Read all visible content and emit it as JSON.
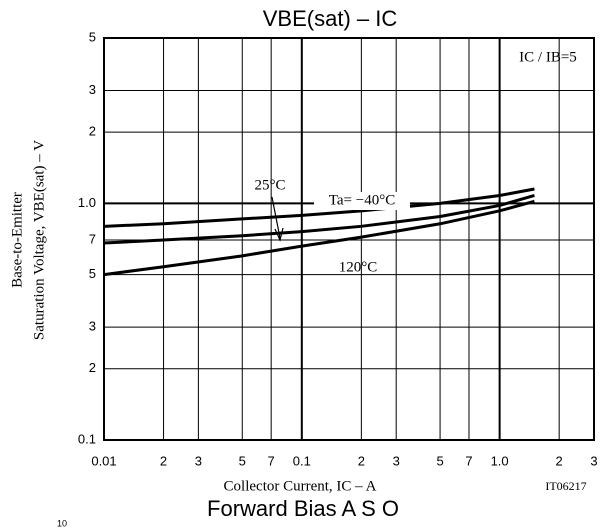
{
  "chart_data": {
    "type": "line",
    "title": "VBE(sat)  –  IC",
    "x_label": "Collector Current, IC  –  A",
    "y_label": [
      "Base-to-Emitter",
      "Saturation Voltage, VBE(sat)  –  V"
    ],
    "condition": "IC / IB=5",
    "figure_code": "IT06217",
    "next_title": "Forward Bias A S O",
    "next_cut_label": "10",
    "log_x": true,
    "log_y": true,
    "grid": true,
    "xlim": [
      0.01,
      3
    ],
    "ylim": [
      0.1,
      5
    ],
    "xticks": [
      0.01,
      {
        "value": 0.02,
        "label": "2"
      },
      {
        "value": 0.03,
        "label": "3"
      },
      {
        "value": 0.05,
        "label": "5"
      },
      {
        "value": 0.07,
        "label": "7"
      },
      0.1,
      {
        "value": 0.2,
        "label": "2"
      },
      {
        "value": 0.3,
        "label": "3"
      },
      {
        "value": 0.5,
        "label": "5"
      },
      {
        "value": 0.7,
        "label": "7"
      },
      {
        "value": 1,
        "label": "1.0"
      },
      2,
      3
    ],
    "yticks": [
      0.1,
      {
        "value": 0.2,
        "label": "2"
      },
      {
        "value": 0.3,
        "label": "3"
      },
      {
        "value": 0.5,
        "label": "5"
      },
      {
        "value": 0.7,
        "label": "7"
      },
      {
        "value": 1,
        "label": "1.0"
      },
      2,
      3,
      5
    ],
    "x": [
      0.01,
      0.02,
      0.05,
      0.1,
      0.2,
      0.5,
      1.0,
      1.5
    ],
    "series": [
      {
        "name": "Ta= −40°C",
        "color": "#000000",
        "values": [
          0.8,
          0.82,
          0.86,
          0.89,
          0.93,
          1.0,
          1.08,
          1.15
        ]
      },
      {
        "name": "25°C",
        "color": "#000000",
        "values": [
          0.68,
          0.7,
          0.73,
          0.76,
          0.8,
          0.88,
          0.98,
          1.08
        ]
      },
      {
        "name": "120°C",
        "color": "#000000",
        "values": [
          0.5,
          0.54,
          0.6,
          0.66,
          0.72,
          0.82,
          0.93,
          1.02
        ]
      }
    ]
  }
}
